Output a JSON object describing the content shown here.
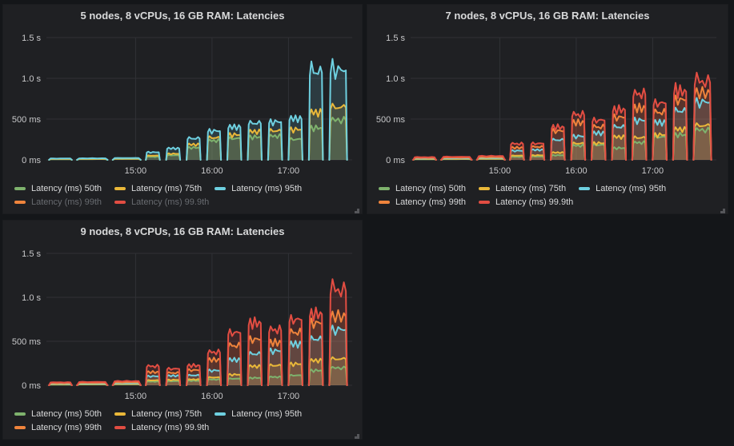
{
  "theme": {
    "page_bg": "#141619",
    "panel_bg": "#1f2023",
    "grid_color": "#303136",
    "axis_text_color": "#c8c8ca",
    "title_color": "#d8d9da",
    "legend_text_color": "#d8d9da",
    "legend_dim_text_color": "#686b70",
    "resize_grip_color": "#55565a"
  },
  "chart_data": [
    {
      "panel_title": "5 nodes, 8 vCPUs, 16 GB RAM: Latencies",
      "type": "area",
      "time_unit": "minutes after 14:00",
      "t_range_min": [
        -10,
        230
      ],
      "y_max_ms": 1500,
      "x_ticks": [
        {
          "label": "15:00",
          "t": 60
        },
        {
          "label": "16:00",
          "t": 120
        },
        {
          "label": "17:00",
          "t": 180
        }
      ],
      "y_ticks": [
        {
          "label": "0 ms",
          "v": 0
        },
        {
          "label": "500 ms",
          "v": 500
        },
        {
          "label": "1.0 s",
          "v": 1000
        },
        {
          "label": "1.5 s",
          "v": 1500
        }
      ],
      "burst_windows_min": [
        [
          -8,
          10
        ],
        [
          14,
          38
        ],
        [
          42,
          64
        ],
        [
          68,
          79
        ],
        [
          84,
          95
        ],
        [
          100,
          111
        ],
        [
          116,
          127
        ],
        [
          132,
          143
        ],
        [
          148,
          159
        ],
        [
          164,
          175
        ],
        [
          180,
          191
        ],
        [
          196,
          207
        ],
        [
          212,
          226
        ]
      ],
      "series": [
        {
          "name": "Latency (ms) 50th",
          "color": "#7EB26D",
          "visible": true,
          "peak_values_ms": [
            8,
            10,
            12,
            40,
            60,
            160,
            250,
            280,
            300,
            310,
            270,
            420,
            520
          ]
        },
        {
          "name": "Latency (ms) 75th",
          "color": "#EAB839",
          "visible": true,
          "peak_values_ms": [
            12,
            14,
            16,
            55,
            80,
            200,
            290,
            330,
            370,
            380,
            400,
            620,
            690
          ]
        },
        {
          "name": "Latency (ms) 95th",
          "color": "#6ED0E0",
          "visible": true,
          "peak_values_ms": [
            18,
            20,
            24,
            100,
            150,
            280,
            380,
            430,
            480,
            500,
            540,
            1150,
            1180
          ]
        },
        {
          "name": "Latency (ms) 99th",
          "color": "#EF843C",
          "visible": false,
          "peak_values_ms": null
        },
        {
          "name": "Latency (ms) 99.9th",
          "color": "#E24D42",
          "visible": false,
          "peak_values_ms": null
        }
      ]
    },
    {
      "panel_title": "7 nodes, 8 vCPUs, 16 GB RAM: Latencies",
      "type": "area",
      "time_unit": "minutes after 14:00",
      "t_range_min": [
        -10,
        230
      ],
      "y_max_ms": 1500,
      "x_ticks": [
        {
          "label": "15:00",
          "t": 60
        },
        {
          "label": "16:00",
          "t": 120
        },
        {
          "label": "17:00",
          "t": 180
        }
      ],
      "y_ticks": [
        {
          "label": "0 ms",
          "v": 0
        },
        {
          "label": "500 ms",
          "v": 500
        },
        {
          "label": "1.0 s",
          "v": 1000
        },
        {
          "label": "1.5 s",
          "v": 1500
        }
      ],
      "burst_windows_min": [
        [
          -8,
          10
        ],
        [
          14,
          38
        ],
        [
          42,
          64
        ],
        [
          68,
          79
        ],
        [
          84,
          95
        ],
        [
          100,
          111
        ],
        [
          116,
          127
        ],
        [
          132,
          143
        ],
        [
          148,
          159
        ],
        [
          164,
          175
        ],
        [
          180,
          191
        ],
        [
          196,
          207
        ],
        [
          212,
          226
        ]
      ],
      "series": [
        {
          "name": "Latency (ms) 50th",
          "color": "#7EB26D",
          "visible": true,
          "peak_values_ms": [
            8,
            10,
            12,
            40,
            45,
            60,
            185,
            195,
            155,
            225,
            300,
            330,
            390
          ]
        },
        {
          "name": "Latency (ms) 75th",
          "color": "#EAB839",
          "visible": true,
          "peak_values_ms": [
            12,
            14,
            16,
            55,
            60,
            95,
            215,
            220,
            300,
            290,
            330,
            400,
            450
          ]
        },
        {
          "name": "Latency (ms) 95th",
          "color": "#6ED0E0",
          "visible": true,
          "peak_values_ms": [
            18,
            20,
            25,
            120,
            130,
            260,
            310,
            350,
            430,
            520,
            490,
            640,
            760
          ]
        },
        {
          "name": "Latency (ms) 99th",
          "color": "#EF843C",
          "visible": true,
          "peak_values_ms": [
            25,
            28,
            35,
            160,
            170,
            380,
            490,
            430,
            560,
            680,
            620,
            790,
            880
          ]
        },
        {
          "name": "Latency (ms) 99.9th",
          "color": "#E24D42",
          "visible": true,
          "peak_values_ms": [
            35,
            40,
            50,
            210,
            215,
            430,
            590,
            520,
            660,
            860,
            745,
            900,
            1020
          ]
        }
      ]
    },
    {
      "panel_title": "9 nodes, 8 vCPUs, 16 GB RAM: Latencies",
      "type": "area",
      "time_unit": "minutes after 14:00",
      "t_range_min": [
        -10,
        230
      ],
      "y_max_ms": 1500,
      "x_ticks": [
        {
          "label": "15:00",
          "t": 60
        },
        {
          "label": "16:00",
          "t": 120
        },
        {
          "label": "17:00",
          "t": 180
        }
      ],
      "y_ticks": [
        {
          "label": "0 ms",
          "v": 0
        },
        {
          "label": "500 ms",
          "v": 500
        },
        {
          "label": "1.0 s",
          "v": 1000
        },
        {
          "label": "1.5 s",
          "v": 1500
        }
      ],
      "burst_windows_min": [
        [
          -8,
          10
        ],
        [
          14,
          38
        ],
        [
          42,
          64
        ],
        [
          68,
          79
        ],
        [
          84,
          95
        ],
        [
          100,
          111
        ],
        [
          116,
          127
        ],
        [
          132,
          143
        ],
        [
          148,
          159
        ],
        [
          164,
          175
        ],
        [
          180,
          191
        ],
        [
          196,
          207
        ],
        [
          212,
          226
        ]
      ],
      "series": [
        {
          "name": "Latency (ms) 50th",
          "color": "#7EB26D",
          "visible": true,
          "peak_values_ms": [
            8,
            10,
            12,
            45,
            50,
            55,
            70,
            80,
            90,
            100,
            120,
            180,
            210
          ]
        },
        {
          "name": "Latency (ms) 75th",
          "color": "#EAB839",
          "visible": true,
          "peak_values_ms": [
            12,
            14,
            16,
            60,
            65,
            70,
            95,
            130,
            230,
            240,
            260,
            300,
            320
          ]
        },
        {
          "name": "Latency (ms) 95th",
          "color": "#6ED0E0",
          "visible": true,
          "peak_values_ms": [
            18,
            20,
            24,
            110,
            115,
            120,
            180,
            310,
            380,
            420,
            500,
            560,
            680
          ]
        },
        {
          "name": "Latency (ms) 99th",
          "color": "#EF843C",
          "visible": true,
          "peak_values_ms": [
            25,
            28,
            35,
            160,
            150,
            185,
            310,
            480,
            560,
            520,
            640,
            760,
            840
          ]
        },
        {
          "name": "Latency (ms) 99.9th",
          "color": "#E24D42",
          "visible": true,
          "peak_values_ms": [
            35,
            40,
            50,
            230,
            200,
            240,
            400,
            640,
            760,
            670,
            800,
            870,
            1150
          ]
        }
      ]
    }
  ]
}
